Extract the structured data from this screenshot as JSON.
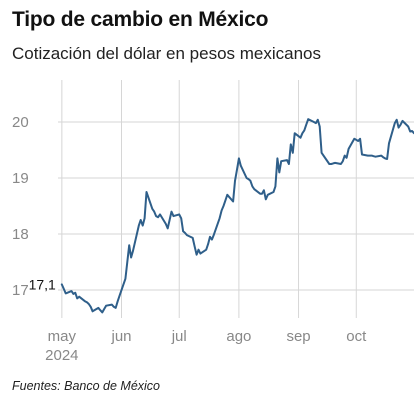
{
  "header": {
    "title": "Tipo de cambio en México",
    "subtitle": "Cotización del dólar en pesos mexicanos"
  },
  "footer": {
    "source": "Fuentes: Banco de México"
  },
  "colors": {
    "line": "#2f5f8a",
    "grid": "#d6d6d6",
    "axis_text": "#888888",
    "label_text": "#111111"
  },
  "chart_data": {
    "type": "line",
    "title": "Tipo de cambio en México",
    "subtitle": "Cotización del dólar en pesos mexicanos",
    "xlabel": "",
    "ylabel": "",
    "ylim": [
      16.5,
      20.75
    ],
    "xlim": [
      "2024-04-29",
      "2024-10-31"
    ],
    "yticks": [
      17,
      18,
      19,
      20
    ],
    "ytick_labels": [
      "17",
      "18",
      "19",
      "20"
    ],
    "xticks": [
      "2024-05-01",
      "2024-06-01",
      "2024-07-01",
      "2024-08-01",
      "2024-09-01",
      "2024-10-01"
    ],
    "xtick_labels": [
      "may",
      "jun",
      "jul",
      "ago",
      "sep",
      "oct"
    ],
    "year_label": "2024",
    "grid": true,
    "annotation": {
      "text": "17,1",
      "x": "2024-05-01",
      "y": 17.1
    },
    "series": [
      {
        "x": [
          "2024-05-01",
          "2024-05-02",
          "2024-05-03",
          "2024-05-06",
          "2024-05-07",
          "2024-05-08",
          "2024-05-09",
          "2024-05-10",
          "2024-05-13",
          "2024-05-14",
          "2024-05-15",
          "2024-05-16",
          "2024-05-17",
          "2024-05-20",
          "2024-05-21",
          "2024-05-22",
          "2024-05-23",
          "2024-05-24",
          "2024-05-27",
          "2024-05-28",
          "2024-05-29",
          "2024-05-30",
          "2024-05-31",
          "2024-06-03",
          "2024-06-04",
          "2024-06-05",
          "2024-06-06",
          "2024-06-07",
          "2024-06-10",
          "2024-06-11",
          "2024-06-12",
          "2024-06-13",
          "2024-06-14",
          "2024-06-17",
          "2024-06-18",
          "2024-06-19",
          "2024-06-20",
          "2024-06-21",
          "2024-06-24",
          "2024-06-25",
          "2024-06-26",
          "2024-06-27",
          "2024-06-28",
          "2024-07-01",
          "2024-07-02",
          "2024-07-03",
          "2024-07-04",
          "2024-07-05",
          "2024-07-08",
          "2024-07-09",
          "2024-07-10",
          "2024-07-11",
          "2024-07-12",
          "2024-07-15",
          "2024-07-16",
          "2024-07-17",
          "2024-07-18",
          "2024-07-19",
          "2024-07-22",
          "2024-07-23",
          "2024-07-24",
          "2024-07-25",
          "2024-07-26",
          "2024-07-29",
          "2024-07-30",
          "2024-07-31",
          "2024-08-01",
          "2024-08-02",
          "2024-08-05",
          "2024-08-06",
          "2024-08-07",
          "2024-08-08",
          "2024-08-09",
          "2024-08-12",
          "2024-08-13",
          "2024-08-14",
          "2024-08-15",
          "2024-08-16",
          "2024-08-19",
          "2024-08-20",
          "2024-08-21",
          "2024-08-22",
          "2024-08-23",
          "2024-08-26",
          "2024-08-27",
          "2024-08-28",
          "2024-08-29",
          "2024-08-30",
          "2024-09-02",
          "2024-09-03",
          "2024-09-04",
          "2024-09-05",
          "2024-09-06",
          "2024-09-09",
          "2024-09-10",
          "2024-09-11",
          "2024-09-12",
          "2024-09-13",
          "2024-09-17",
          "2024-09-18",
          "2024-09-19",
          "2024-09-20",
          "2024-09-23",
          "2024-09-24",
          "2024-09-25",
          "2024-09-26",
          "2024-09-27",
          "2024-09-30",
          "2024-10-01",
          "2024-10-02",
          "2024-10-03",
          "2024-10-04",
          "2024-10-07",
          "2024-10-08",
          "2024-10-09",
          "2024-10-10",
          "2024-10-11",
          "2024-10-14",
          "2024-10-15",
          "2024-10-16",
          "2024-10-17",
          "2024-10-18",
          "2024-10-21",
          "2024-10-22",
          "2024-10-23",
          "2024-10-24",
          "2024-10-25",
          "2024-10-28",
          "2024-10-29",
          "2024-10-30",
          "2024-10-31"
        ],
        "values": [
          17.1,
          17.02,
          16.94,
          16.98,
          16.93,
          16.95,
          16.85,
          16.88,
          16.8,
          16.78,
          16.75,
          16.7,
          16.62,
          16.68,
          16.64,
          16.6,
          16.66,
          16.72,
          16.74,
          16.7,
          16.68,
          16.8,
          16.9,
          17.2,
          17.5,
          17.8,
          17.58,
          17.7,
          18.15,
          18.25,
          18.15,
          18.28,
          18.75,
          18.45,
          18.4,
          18.32,
          18.3,
          18.35,
          18.18,
          18.1,
          18.25,
          18.4,
          18.32,
          18.35,
          18.28,
          18.05,
          18.02,
          17.98,
          17.93,
          17.78,
          17.63,
          17.72,
          17.65,
          17.72,
          17.82,
          17.95,
          17.9,
          17.99,
          18.28,
          18.42,
          18.5,
          18.6,
          18.7,
          18.58,
          18.95,
          19.15,
          19.35,
          19.22,
          19.0,
          18.98,
          18.95,
          18.85,
          18.8,
          18.72,
          18.72,
          18.78,
          18.62,
          18.7,
          18.75,
          18.85,
          19.35,
          19.1,
          19.3,
          19.32,
          19.25,
          19.6,
          19.45,
          19.8,
          19.72,
          19.8,
          19.85,
          19.95,
          20.05,
          20.0,
          19.98,
          20.04,
          19.92,
          19.45,
          19.25,
          19.25,
          19.26,
          19.27,
          19.25,
          19.3,
          19.4,
          19.36,
          19.52,
          19.7,
          19.68,
          19.66,
          19.7,
          19.42,
          19.4,
          19.4,
          19.4,
          19.39,
          19.38,
          19.4,
          19.37,
          19.35,
          19.34,
          19.62,
          19.98,
          20.04,
          19.9,
          19.95,
          20.02,
          19.92,
          19.83,
          19.84,
          19.8
        ]
      }
    ]
  }
}
